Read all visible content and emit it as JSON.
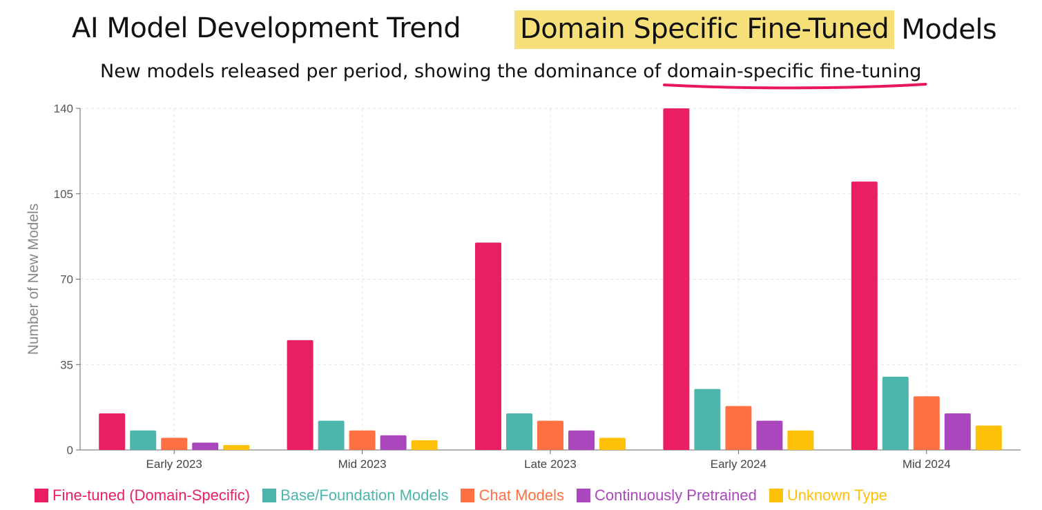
{
  "header": {
    "title_left": "AI Model Development Trend",
    "title_highlight": "Domain Specific Fine-Tuned",
    "title_rest": "Models",
    "subtitle_prefix": "New models released per period, showing the dominance of ",
    "subtitle_emphasis": "domain-specific fine-tuning",
    "highlight_color": "#f7e07a",
    "underline_color": "#e8175d"
  },
  "chart_data": {
    "type": "bar",
    "title": "",
    "xlabel": "",
    "ylabel": "Number of New Models",
    "ylim": [
      0,
      140
    ],
    "yticks": [
      0,
      35,
      70,
      105,
      140
    ],
    "grid": true,
    "legend_placement": "bottom",
    "categories": [
      "Early 2023",
      "Mid 2023",
      "Late 2023",
      "Early 2024",
      "Mid 2024"
    ],
    "series": [
      {
        "name": "Fine-tuned (Domain-Specific)",
        "color": "#e91e63",
        "values": [
          15,
          45,
          85,
          140,
          110
        ]
      },
      {
        "name": "Base/Foundation Models",
        "color": "#4db6ac",
        "values": [
          8,
          12,
          15,
          25,
          30
        ]
      },
      {
        "name": "Chat Models",
        "color": "#ff7043",
        "values": [
          5,
          8,
          12,
          18,
          22
        ]
      },
      {
        "name": "Continuously Pretrained",
        "color": "#ab47bc",
        "values": [
          3,
          6,
          8,
          12,
          15
        ]
      },
      {
        "name": "Unknown Type",
        "color": "#ffc107",
        "values": [
          2,
          4,
          5,
          8,
          10
        ]
      }
    ]
  }
}
